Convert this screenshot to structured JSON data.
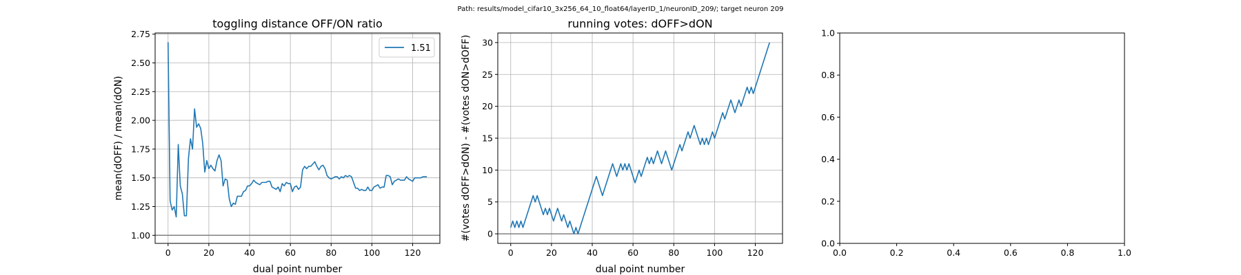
{
  "suptitle": "Path: results/model_cifar10_3x256_64_10_float64/layerID_1/neuronID_209/; target neuron 209",
  "colors": {
    "line": "#1f77b4",
    "grid": "#b0b0b0",
    "hline": "#808080",
    "axes": "#000000"
  },
  "chart_data": [
    {
      "type": "line",
      "title": "toggling distance OFF/ON ratio",
      "xlabel": "dual point number",
      "ylabel": "mean(dOFF) / mean(dON)",
      "xlim": [
        -6.35,
        133.35
      ],
      "ylim": [
        0.93,
        2.76
      ],
      "xticks": [
        0,
        20,
        40,
        60,
        80,
        100,
        120
      ],
      "xtick_labels": [
        "0",
        "20",
        "40",
        "60",
        "80",
        "100",
        "120"
      ],
      "yticks": [
        1.0,
        1.25,
        1.5,
        1.75,
        2.0,
        2.25,
        2.5,
        2.75
      ],
      "ytick_labels": [
        "1.00",
        "1.25",
        "1.50",
        "1.75",
        "2.00",
        "2.25",
        "2.50",
        "2.75"
      ],
      "grid": true,
      "legend": {
        "location": "upper right",
        "entries": [
          "1.51"
        ]
      },
      "hline": 1.0,
      "series": [
        {
          "name": "1.51",
          "y": [
            2.68,
            1.3,
            1.22,
            1.25,
            1.16,
            1.79,
            1.43,
            1.36,
            1.17,
            1.17,
            1.67,
            1.84,
            1.75,
            2.1,
            1.94,
            1.97,
            1.93,
            1.8,
            1.55,
            1.65,
            1.58,
            1.61,
            1.58,
            1.56,
            1.65,
            1.7,
            1.65,
            1.43,
            1.49,
            1.48,
            1.32,
            1.25,
            1.28,
            1.27,
            1.34,
            1.34,
            1.34,
            1.38,
            1.39,
            1.43,
            1.43,
            1.45,
            1.48,
            1.46,
            1.45,
            1.44,
            1.46,
            1.46,
            1.46,
            1.47,
            1.47,
            1.42,
            1.41,
            1.4,
            1.42,
            1.38,
            1.45,
            1.43,
            1.46,
            1.45,
            1.45,
            1.38,
            1.42,
            1.43,
            1.4,
            1.42,
            1.57,
            1.6,
            1.58,
            1.6,
            1.6,
            1.62,
            1.64,
            1.6,
            1.57,
            1.6,
            1.61,
            1.58,
            1.52,
            1.5,
            1.49,
            1.5,
            1.51,
            1.51,
            1.49,
            1.51,
            1.5,
            1.52,
            1.51,
            1.52,
            1.51,
            1.46,
            1.41,
            1.41,
            1.39,
            1.4,
            1.39,
            1.39,
            1.42,
            1.39,
            1.39,
            1.42,
            1.43,
            1.44,
            1.41,
            1.42,
            1.42,
            1.52,
            1.52,
            1.51,
            1.44,
            1.47,
            1.48,
            1.49,
            1.48,
            1.48,
            1.48,
            1.51,
            1.49,
            1.48,
            1.47,
            1.5,
            1.5,
            1.5,
            1.5,
            1.51,
            1.51,
            1.51
          ]
        }
      ]
    },
    {
      "type": "line",
      "title": "running votes: dOFF>dON",
      "xlabel": "dual point number",
      "ylabel": "#(votes dOFF>dON) - #(votes dON>dOFF)",
      "xlim": [
        -6.35,
        133.35
      ],
      "ylim": [
        -1.5,
        31.5
      ],
      "xticks": [
        0,
        20,
        40,
        60,
        80,
        100,
        120
      ],
      "xtick_labels": [
        "0",
        "20",
        "40",
        "60",
        "80",
        "100",
        "120"
      ],
      "yticks": [
        0,
        5,
        10,
        15,
        20,
        25,
        30
      ],
      "ytick_labels": [
        "0",
        "5",
        "10",
        "15",
        "20",
        "25",
        "30"
      ],
      "grid": true,
      "hline": 0,
      "series": [
        {
          "name": "",
          "y": [
            1,
            2,
            1,
            2,
            1,
            2,
            1,
            2,
            3,
            4,
            5,
            6,
            5,
            6,
            5,
            4,
            3,
            4,
            3,
            4,
            3,
            2,
            3,
            4,
            3,
            2,
            3,
            2,
            1,
            2,
            1,
            0,
            1,
            0,
            1,
            2,
            3,
            4,
            5,
            6,
            7,
            8,
            9,
            8,
            7,
            6,
            7,
            8,
            9,
            10,
            11,
            10,
            9,
            10,
            11,
            10,
            11,
            10,
            11,
            10,
            9,
            8,
            9,
            10,
            9,
            10,
            11,
            12,
            11,
            12,
            11,
            12,
            13,
            12,
            11,
            12,
            13,
            12,
            11,
            10,
            11,
            12,
            13,
            14,
            13,
            14,
            15,
            16,
            15,
            16,
            17,
            16,
            15,
            14,
            15,
            14,
            15,
            14,
            15,
            16,
            15,
            16,
            17,
            18,
            19,
            18,
            19,
            20,
            21,
            20,
            19,
            20,
            21,
            20,
            21,
            22,
            23,
            22,
            23,
            22,
            23,
            24,
            25,
            26,
            27,
            28,
            29,
            30
          ]
        }
      ]
    },
    {
      "type": "line",
      "title": "",
      "xlabel": "",
      "ylabel": "",
      "xlim": [
        0,
        1
      ],
      "ylim": [
        0,
        1
      ],
      "xticks": [
        0,
        0.2,
        0.4,
        0.6,
        0.8,
        1.0
      ],
      "xtick_labels": [
        "0.0",
        "0.2",
        "0.4",
        "0.6",
        "0.8",
        "1.0"
      ],
      "yticks": [
        0,
        0.2,
        0.4,
        0.6,
        0.8,
        1.0
      ],
      "ytick_labels": [
        "0.0",
        "0.2",
        "0.4",
        "0.6",
        "0.8",
        "1.0"
      ],
      "grid": false,
      "series": []
    }
  ]
}
